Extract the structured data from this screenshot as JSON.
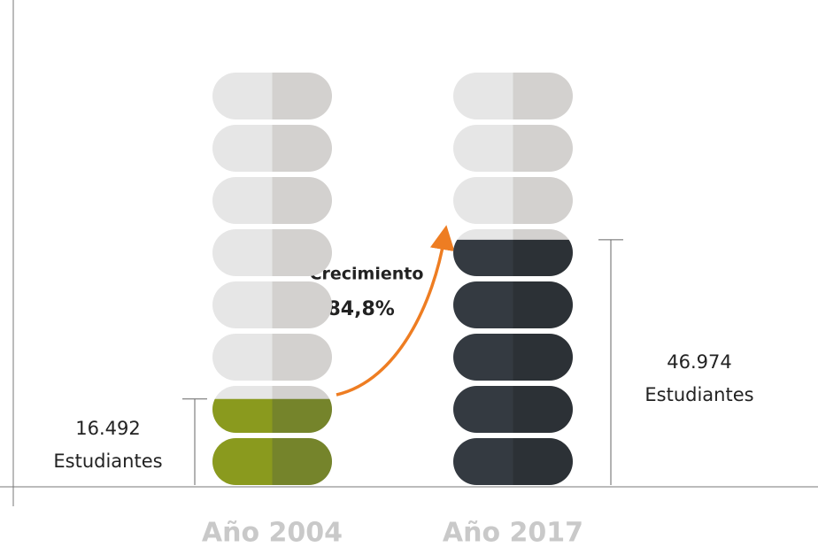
{
  "chart_data": {
    "type": "pictogram",
    "categories": [
      "Año 2004",
      "Año 2017"
    ],
    "values": [
      16492,
      46974
    ],
    "value_labels": [
      "16.492",
      "46.974"
    ],
    "unit_label": "Estudiantes",
    "colors": [
      [
        "#8a9a1e",
        "#75842b"
      ],
      [
        "#343a41",
        "#2c3136"
      ]
    ],
    "empty_colors": [
      "#e6e6e6",
      "#d3d1cf"
    ],
    "ylim": [
      0,
      80000
    ],
    "annotation_title": "Crecimiento",
    "annotation": "184,8%"
  }
}
